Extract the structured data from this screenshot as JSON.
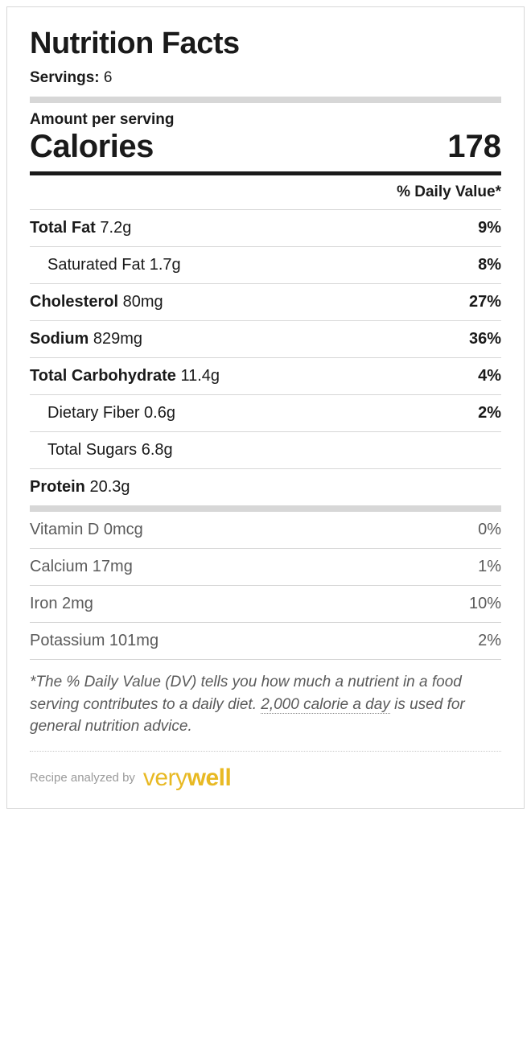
{
  "title": "Nutrition Facts",
  "servings": {
    "label": "Servings:",
    "value": "6"
  },
  "amount_label": "Amount per serving",
  "calories": {
    "label": "Calories",
    "value": "178"
  },
  "dv_header": "% Daily Value*",
  "nutrients": [
    {
      "name": "Total Fat",
      "amount": "7.2g",
      "dv": "9%",
      "bold": true,
      "indent": false
    },
    {
      "name": "Saturated Fat",
      "amount": "1.7g",
      "dv": "8%",
      "bold": false,
      "indent": true
    },
    {
      "name": "Cholesterol",
      "amount": "80mg",
      "dv": "27%",
      "bold": true,
      "indent": false
    },
    {
      "name": "Sodium",
      "amount": "829mg",
      "dv": "36%",
      "bold": true,
      "indent": false
    },
    {
      "name": "Total Carbohydrate",
      "amount": "11.4g",
      "dv": "4%",
      "bold": true,
      "indent": false
    },
    {
      "name": "Dietary Fiber",
      "amount": "0.6g",
      "dv": "2%",
      "bold": false,
      "indent": true
    },
    {
      "name": "Total Sugars",
      "amount": "6.8g",
      "dv": "",
      "bold": false,
      "indent": true
    },
    {
      "name": "Protein",
      "amount": "20.3g",
      "dv": "",
      "bold": true,
      "indent": false
    }
  ],
  "vitamins": [
    {
      "name": "Vitamin D",
      "amount": "0mcg",
      "dv": "0%"
    },
    {
      "name": "Calcium",
      "amount": "17mg",
      "dv": "1%"
    },
    {
      "name": "Iron",
      "amount": "2mg",
      "dv": "10%"
    },
    {
      "name": "Potassium",
      "amount": "101mg",
      "dv": "2%"
    }
  ],
  "footnote": {
    "pre": "*The % Daily Value (DV) tells you how much a nutrient in a food serving contributes to a daily diet. ",
    "link": "2,000 calorie a day",
    "post": " is used for general nutrition advice."
  },
  "analyzed": {
    "label": "Recipe analyzed by",
    "brand_part1": "very",
    "brand_part2": "well"
  },
  "colors": {
    "border": "#d7d7d7",
    "text": "#1a1a1a",
    "muted": "#5a5a5a",
    "brand": "#e8b923",
    "background": "#ffffff"
  }
}
